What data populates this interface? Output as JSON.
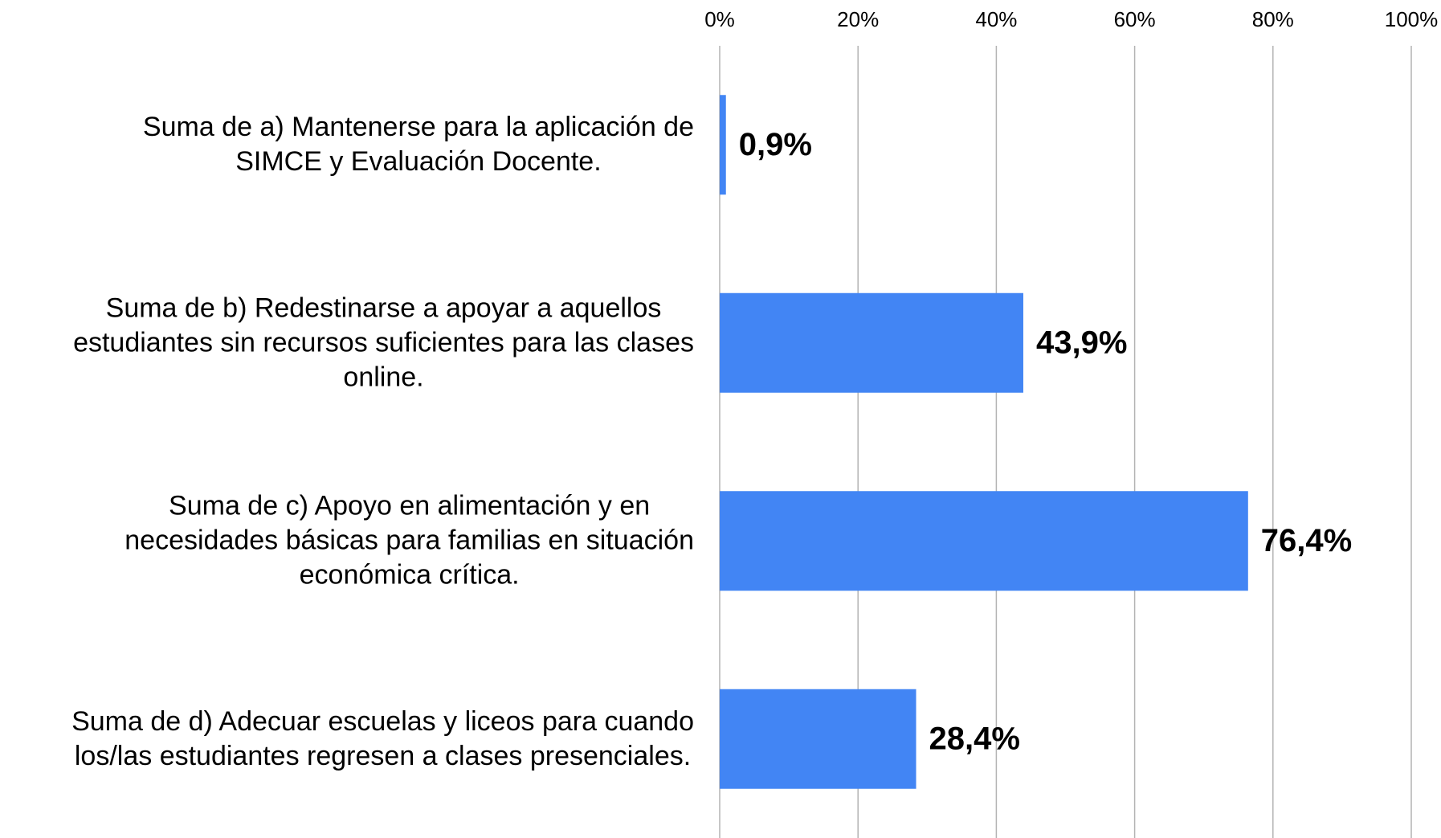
{
  "chart_data": {
    "type": "barh",
    "categories": [
      "Suma de a) Mantenerse para la aplicación de\nSIMCE y Evaluación Docente.",
      "Suma de b) Redestinarse a apoyar a aquellos\nestudiantes sin recursos suficientes para las clases\nonline.",
      "Suma de c) Apoyo en alimentación y en\nnecesidades básicas para familias en situación\neconómica crítica.",
      "Suma de d) Adecuar escuelas y liceos para cuando\nlos/las estudiantes regresen a clases presenciales."
    ],
    "values": [
      0.9,
      43.9,
      76.4,
      28.4
    ],
    "value_labels": [
      "0,9%",
      "43,9%",
      "76,4%",
      "28,4%"
    ],
    "color": "#4285f4",
    "xlim": [
      0,
      100
    ],
    "xticks": [
      {
        "value": 0,
        "label": "0%"
      },
      {
        "value": 20,
        "label": "20%"
      },
      {
        "value": 40,
        "label": "40%"
      },
      {
        "value": 60,
        "label": "60%"
      },
      {
        "value": 80,
        "label": "80%"
      },
      {
        "value": 100,
        "label": "100%"
      }
    ],
    "grid": true
  }
}
